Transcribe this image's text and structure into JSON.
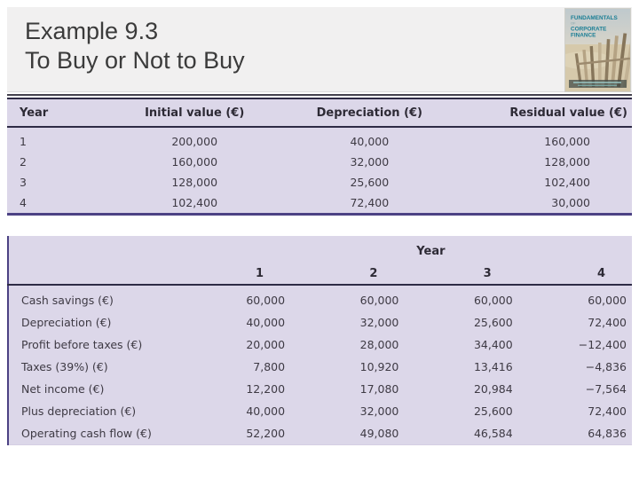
{
  "slide": {
    "title_line1": "Example 9.3",
    "title_line2": "To Buy or Not to Buy"
  },
  "book_cover": {
    "title_line1": "FUNDAMENTALS",
    "title_line2": "OF",
    "title_line3": "CORPORATE",
    "title_line4": "FINANCE"
  },
  "depreciation_table": {
    "columns": [
      "Year",
      "Initial value (€)",
      "Depreciation (€)",
      "Residual value (€)"
    ],
    "rows": [
      [
        "1",
        "200,000",
        "40,000",
        "160,000"
      ],
      [
        "2",
        "160,000",
        "32,000",
        "128,000"
      ],
      [
        "3",
        "128,000",
        "25,600",
        "102,400"
      ],
      [
        "4",
        "102,400",
        "72,400",
        "30,000"
      ]
    ]
  },
  "cash_flow_table": {
    "year_header": "Year",
    "year_columns": [
      "1",
      "2",
      "3",
      "4"
    ],
    "rows": [
      {
        "label": "Cash savings (€)",
        "values": [
          "60,000",
          "60,000",
          "60,000",
          "60,000"
        ]
      },
      {
        "label": "Depreciation (€)",
        "values": [
          "40,000",
          "32,000",
          "25,600",
          "72,400"
        ]
      },
      {
        "label": "Profit before taxes (€)",
        "values": [
          "20,000",
          "28,000",
          "34,400",
          "−12,400"
        ]
      },
      {
        "label": "Taxes (39%) (€)",
        "values": [
          "7,800",
          "10,920",
          "13,416",
          "−4,836"
        ]
      },
      {
        "label": "Net income (€)",
        "values": [
          "12,200",
          "17,080",
          "20,984",
          "−7,564"
        ]
      },
      {
        "label": "Plus depreciation (€)",
        "values": [
          "40,000",
          "32,000",
          "25,600",
          "72,400"
        ]
      },
      {
        "label": "Operating cash flow (€)",
        "values": [
          "52,200",
          "49,080",
          "46,584",
          "64,836"
        ]
      }
    ]
  },
  "colors": {
    "table_background": "#dcd7e9",
    "purple_border": "#4c4284",
    "dark_border": "#2e2b45",
    "header_band": "#f1f0f0",
    "cover_teal": "#1a7e95"
  }
}
